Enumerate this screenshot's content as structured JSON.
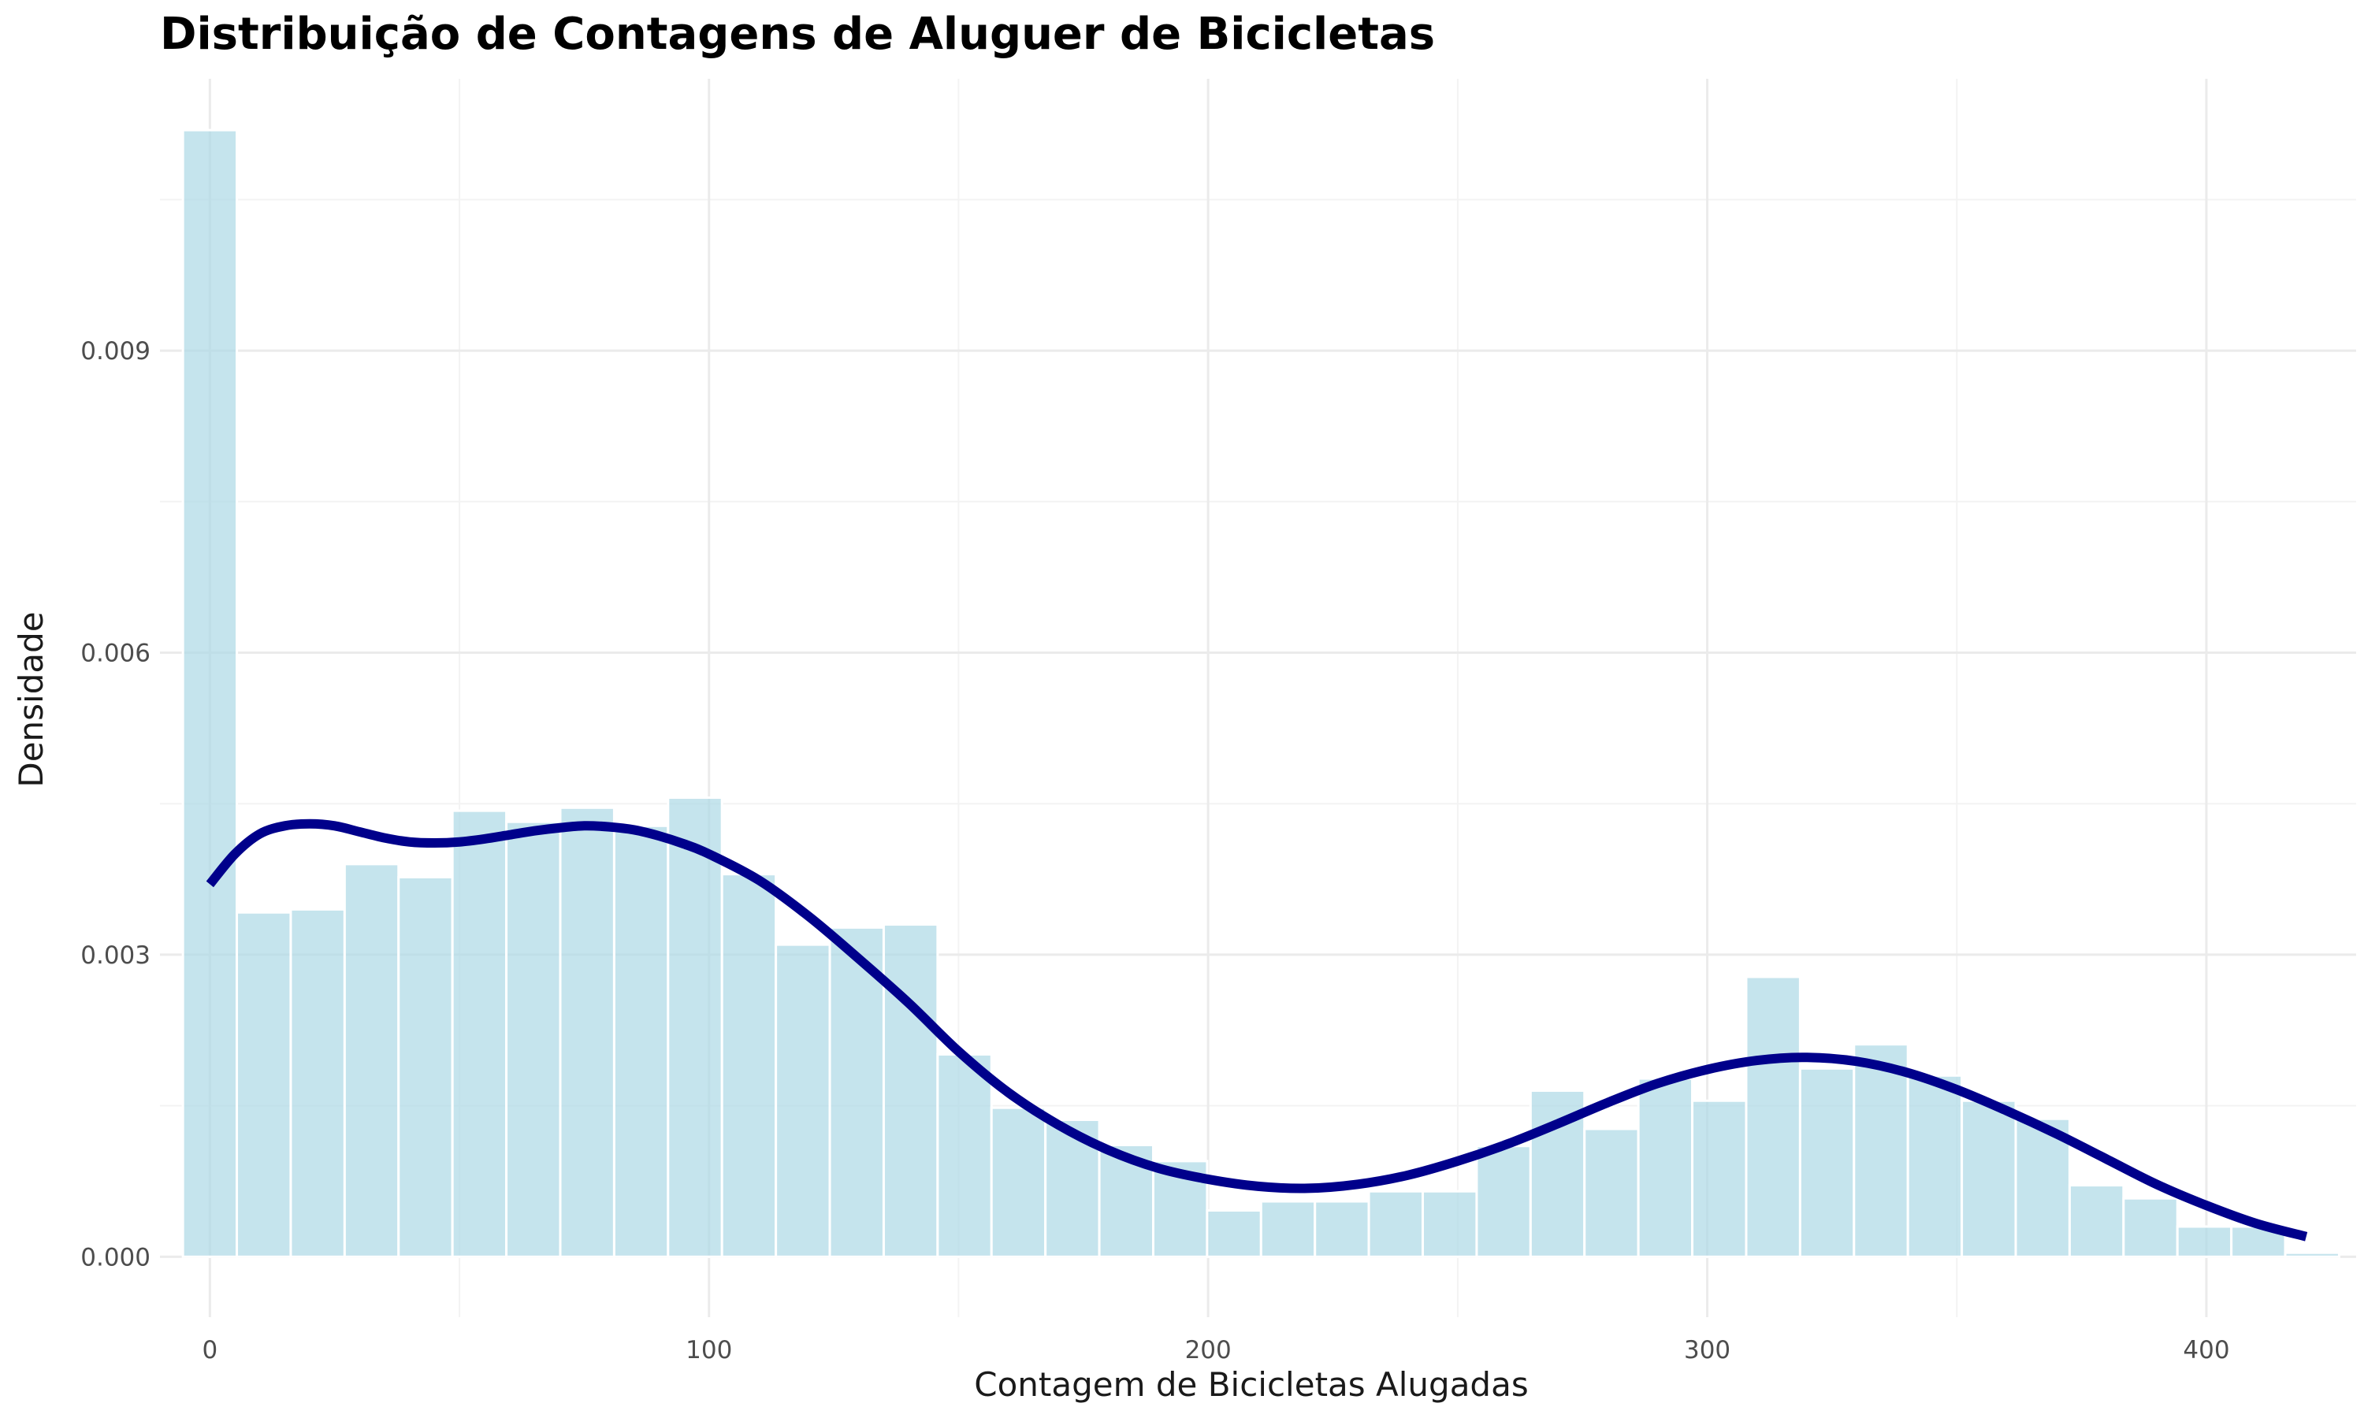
{
  "chart_data": {
    "type": "bar",
    "title": "Distribuição de Contagens de Aluguer de Bicicletas",
    "xlabel": "Contagem de Bicicletas Alugadas",
    "ylabel": "Densidade",
    "xlim": [
      -10,
      430
    ],
    "ylim": [
      -0.0006,
      0.0117
    ],
    "x_ticks": [
      0,
      100,
      200,
      300,
      400
    ],
    "x_tick_labels": [
      "0",
      "100",
      "200",
      "300",
      "400"
    ],
    "y_ticks": [
      0,
      0.003,
      0.006,
      0.009
    ],
    "y_tick_labels": [
      "0.000",
      "0.003",
      "0.006",
      "0.009"
    ],
    "grid": true,
    "bin_width": 10.8,
    "bins": [
      {
        "x": 0,
        "density": 0.01119
      },
      {
        "x": 10.8,
        "density": 0.00342
      },
      {
        "x": 21.6,
        "density": 0.00345
      },
      {
        "x": 32.4,
        "density": 0.0039
      },
      {
        "x": 43.2,
        "density": 0.00377
      },
      {
        "x": 54,
        "density": 0.00443
      },
      {
        "x": 64.8,
        "density": 0.00432
      },
      {
        "x": 75.6,
        "density": 0.00446
      },
      {
        "x": 86.4,
        "density": 0.00428
      },
      {
        "x": 97.2,
        "density": 0.00456
      },
      {
        "x": 108,
        "density": 0.0038
      },
      {
        "x": 118.8,
        "density": 0.0031
      },
      {
        "x": 129.6,
        "density": 0.00327
      },
      {
        "x": 140.4,
        "density": 0.0033
      },
      {
        "x": 151.2,
        "density": 0.00201
      },
      {
        "x": 162,
        "density": 0.00148
      },
      {
        "x": 172.8,
        "density": 0.00136
      },
      {
        "x": 183.6,
        "density": 0.00111
      },
      {
        "x": 194.4,
        "density": 0.00095
      },
      {
        "x": 205.2,
        "density": 0.00046
      },
      {
        "x": 216,
        "density": 0.00055
      },
      {
        "x": 226.8,
        "density": 0.00055
      },
      {
        "x": 237.6,
        "density": 0.00065
      },
      {
        "x": 248.4,
        "density": 0.00065
      },
      {
        "x": 259.2,
        "density": 0.0011
      },
      {
        "x": 270,
        "density": 0.00165
      },
      {
        "x": 280.8,
        "density": 0.00127
      },
      {
        "x": 291.6,
        "density": 0.00177
      },
      {
        "x": 302.4,
        "density": 0.00155
      },
      {
        "x": 313.2,
        "density": 0.00278
      },
      {
        "x": 324,
        "density": 0.00187
      },
      {
        "x": 334.8,
        "density": 0.00211
      },
      {
        "x": 345.6,
        "density": 0.0018
      },
      {
        "x": 356.4,
        "density": 0.00155
      },
      {
        "x": 367.2,
        "density": 0.00137
      },
      {
        "x": 378,
        "density": 0.00071
      },
      {
        "x": 388.8,
        "density": 0.00058
      },
      {
        "x": 399.6,
        "density": 0.0003
      },
      {
        "x": 410.4,
        "density": 0.0003
      },
      {
        "x": 421.2,
        "density": 4e-05
      }
    ],
    "density_curve": {
      "x": [
        0,
        5,
        10,
        15,
        20,
        25,
        30,
        35,
        40,
        45,
        50,
        55,
        60,
        65,
        70,
        75,
        80,
        85,
        90,
        95,
        100,
        110,
        120,
        130,
        140,
        150,
        160,
        170,
        180,
        190,
        200,
        210,
        220,
        230,
        240,
        250,
        260,
        270,
        280,
        290,
        300,
        310,
        320,
        330,
        340,
        350,
        360,
        370,
        380,
        390,
        400,
        410,
        420
      ],
      "y": [
        0.0037,
        0.004,
        0.0042,
        0.00428,
        0.0043,
        0.00428,
        0.00422,
        0.00416,
        0.00412,
        0.00411,
        0.00412,
        0.00415,
        0.00419,
        0.00423,
        0.00426,
        0.00428,
        0.00427,
        0.00424,
        0.00418,
        0.0041,
        0.004,
        0.00374,
        0.00338,
        0.00296,
        0.00252,
        0.00204,
        0.00163,
        0.00131,
        0.00106,
        0.00088,
        0.00077,
        0.0007,
        0.00068,
        0.00072,
        0.00081,
        0.00095,
        0.00112,
        0.00132,
        0.00153,
        0.00172,
        0.00186,
        0.00195,
        0.00198,
        0.00194,
        0.00183,
        0.00166,
        0.00145,
        0.00122,
        0.00097,
        0.00072,
        0.00051,
        0.00033,
        0.0002
      ]
    },
    "colors": {
      "bar_fill": "#add8e6",
      "bar_opacity": 0.7,
      "bar_outline": "#ffffff",
      "density_line": "#00008b"
    }
  }
}
